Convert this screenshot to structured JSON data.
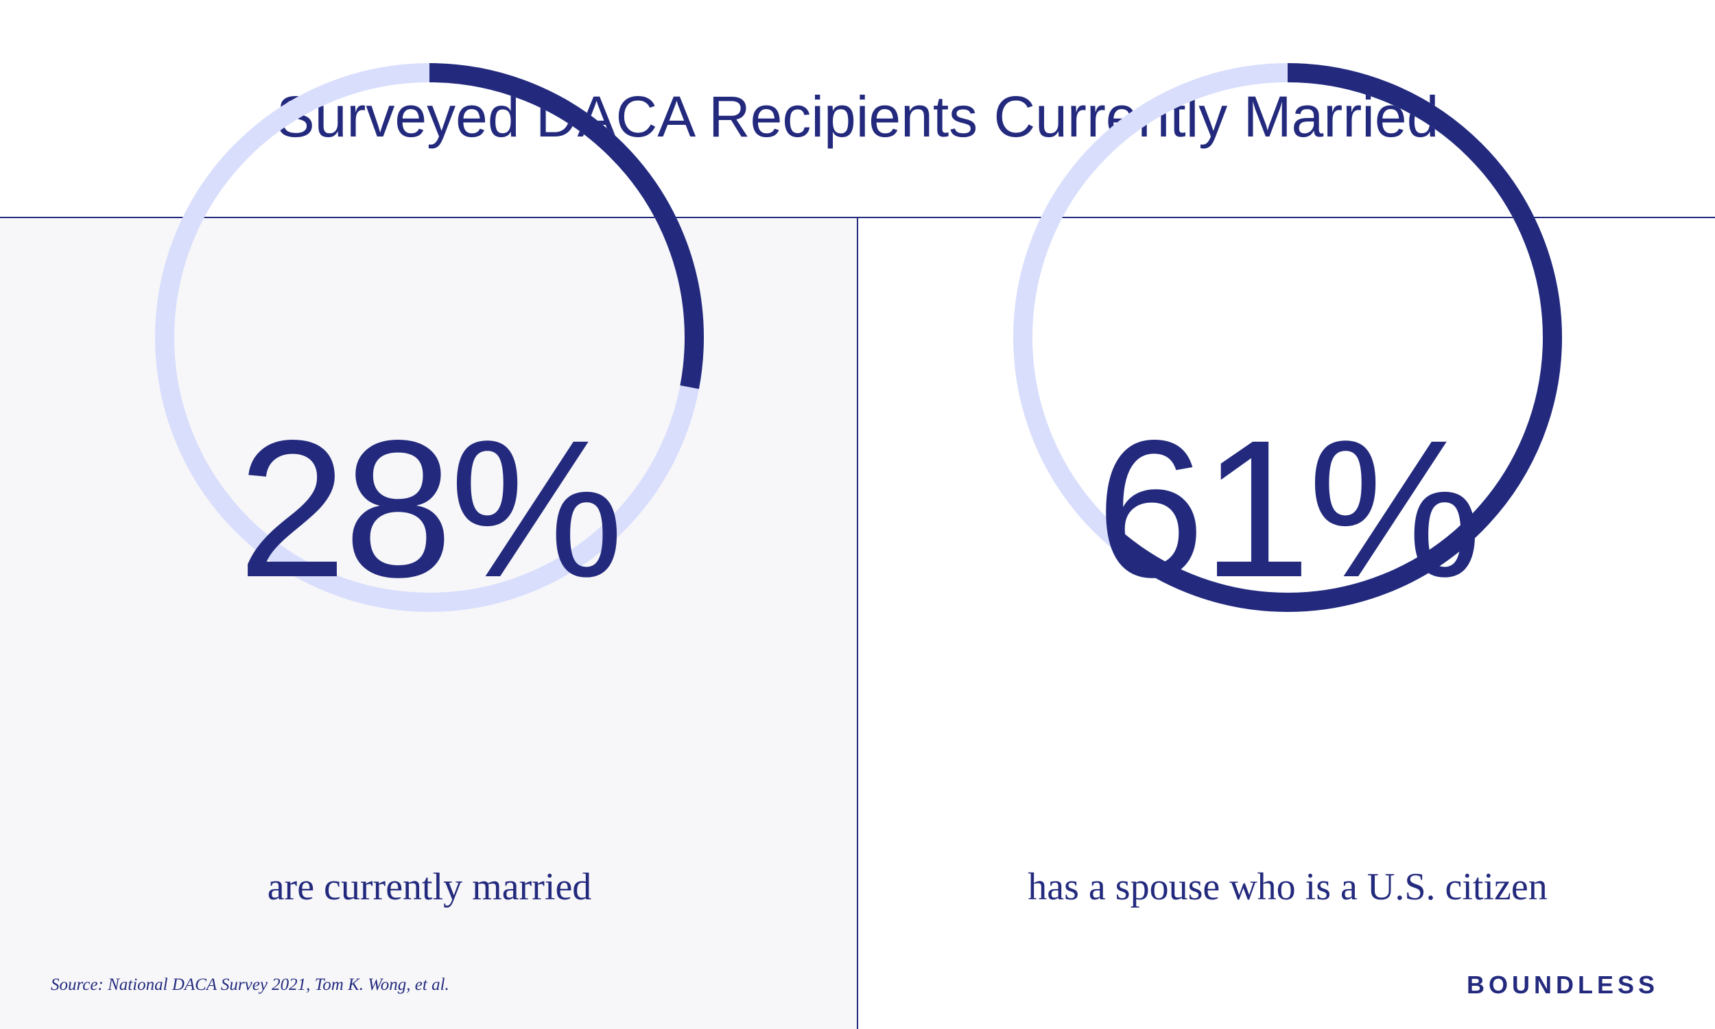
{
  "title": "Surveyed DACA Recipients Currently Married",
  "colors": {
    "accent": "#232a7d",
    "ring_track": "#d9defc",
    "left_panel_bg": "#f7f7f9",
    "right_panel_bg": "#ffffff"
  },
  "chart_data": [
    {
      "type": "pie",
      "value": 28,
      "label": "28%",
      "caption": "are currently married"
    },
    {
      "type": "pie",
      "value": 61,
      "label": "61%",
      "caption": "has a spouse who is a U.S. citizen"
    }
  ],
  "source": "Source: National DACA Survey 2021, Tom K. Wong, et al.",
  "brand": "BOUNDLESS"
}
